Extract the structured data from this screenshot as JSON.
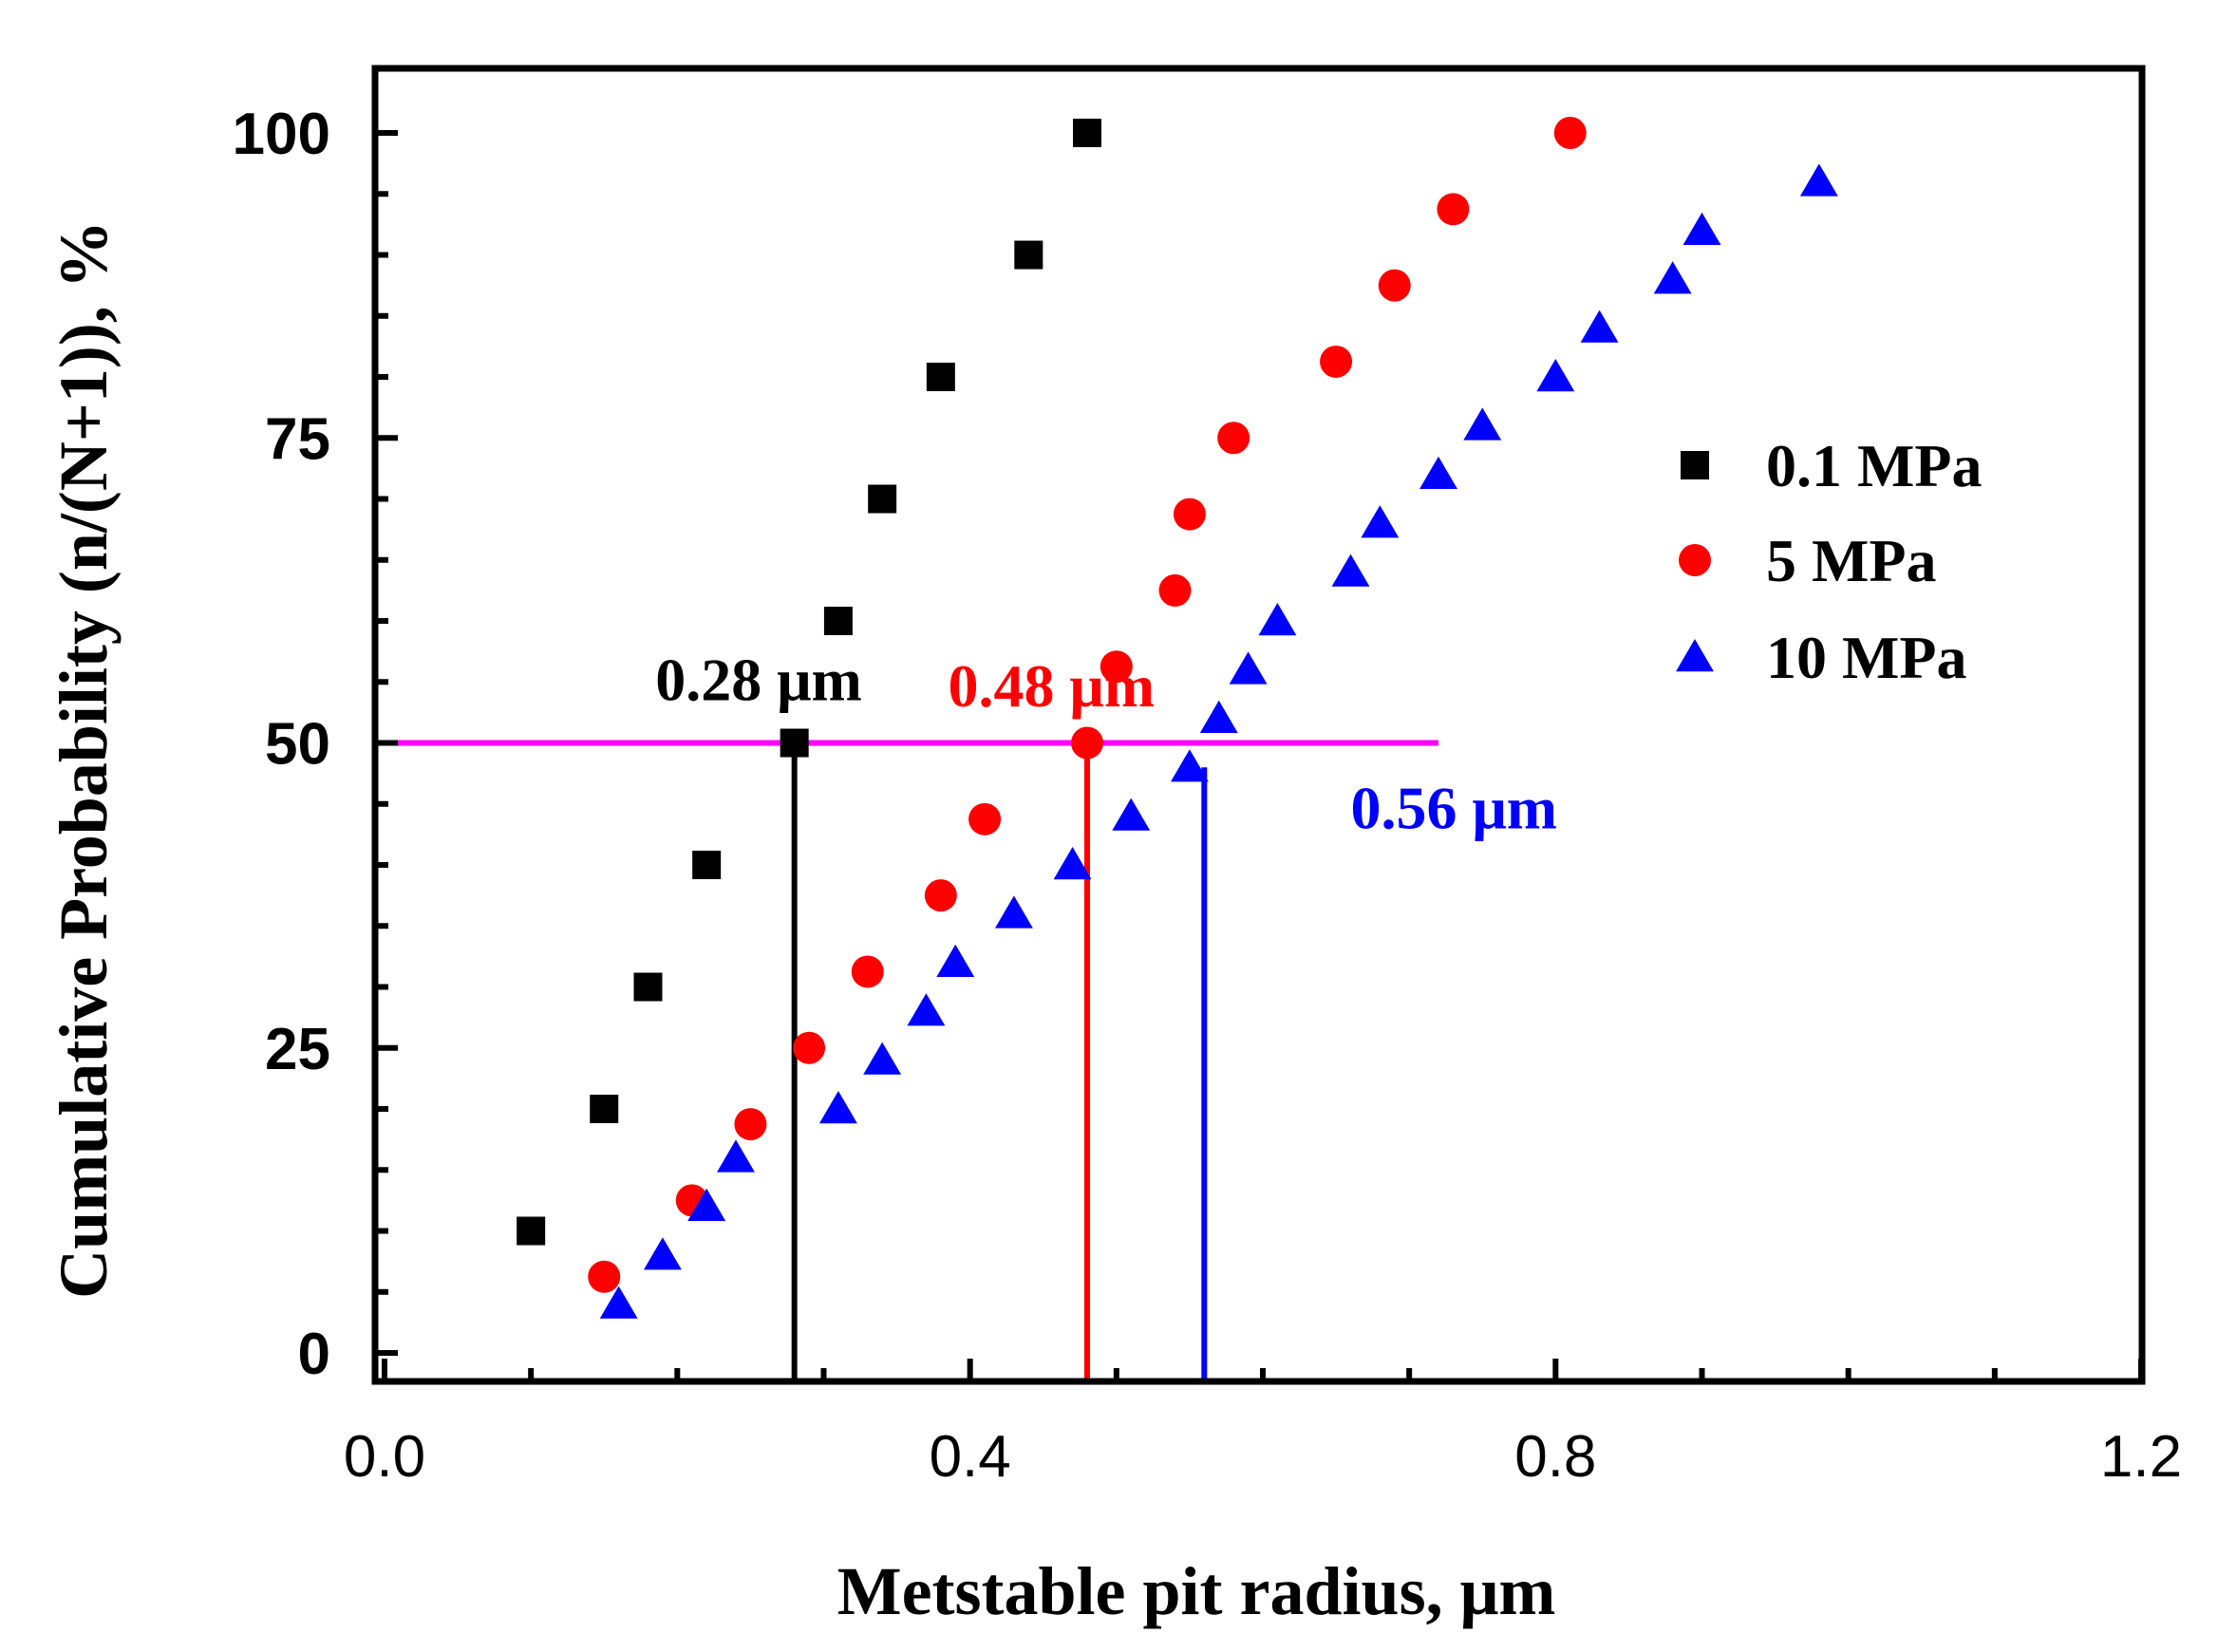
{
  "chart_data": {
    "type": "scatter",
    "xlabel": "Metstable pit radius, μm",
    "ylabel": "Cumulative Probability (n/(N+1)), %",
    "xlim": [
      0.0,
      1.2
    ],
    "ylim": [
      -2,
      105
    ],
    "xticks": [
      0.0,
      0.4,
      0.8,
      1.2
    ],
    "xtick_labels": [
      "0.0",
      "0.4",
      "0.8",
      "1.2"
    ],
    "yticks": [
      0,
      25,
      50,
      75,
      100
    ],
    "ytick_labels": [
      "0",
      "25",
      "50",
      "75",
      "100"
    ],
    "grid": false,
    "legend_position": "right",
    "series": [
      {
        "name": "0.1 MPa",
        "marker": "square",
        "color": "#000000",
        "points": [
          [
            0.1,
            10
          ],
          [
            0.15,
            20
          ],
          [
            0.18,
            30
          ],
          [
            0.22,
            40
          ],
          [
            0.28,
            50
          ],
          [
            0.31,
            60
          ],
          [
            0.34,
            70
          ],
          [
            0.38,
            80
          ],
          [
            0.44,
            90
          ],
          [
            0.48,
            100
          ]
        ]
      },
      {
        "name": "5 MPa",
        "marker": "circle",
        "color": "#ff0000",
        "points": [
          [
            0.15,
            6.25
          ],
          [
            0.21,
            12.5
          ],
          [
            0.25,
            18.75
          ],
          [
            0.29,
            25.0
          ],
          [
            0.33,
            31.25
          ],
          [
            0.38,
            37.5
          ],
          [
            0.41,
            43.75
          ],
          [
            0.48,
            50.0
          ],
          [
            0.5,
            56.25
          ],
          [
            0.54,
            62.5
          ],
          [
            0.55,
            68.75
          ],
          [
            0.58,
            75.0
          ],
          [
            0.65,
            81.25
          ],
          [
            0.69,
            87.5
          ],
          [
            0.73,
            93.75
          ],
          [
            0.81,
            100.0
          ]
        ]
      },
      {
        "name": "10 MPa",
        "marker": "triangle",
        "color": "#0000ff",
        "points": [
          [
            0.16,
            4
          ],
          [
            0.19,
            8
          ],
          [
            0.22,
            12
          ],
          [
            0.24,
            16
          ],
          [
            0.31,
            20
          ],
          [
            0.34,
            24
          ],
          [
            0.37,
            28
          ],
          [
            0.39,
            32
          ],
          [
            0.43,
            36
          ],
          [
            0.47,
            40
          ],
          [
            0.51,
            44
          ],
          [
            0.55,
            48
          ],
          [
            0.57,
            52
          ],
          [
            0.59,
            56
          ],
          [
            0.61,
            60
          ],
          [
            0.66,
            64
          ],
          [
            0.68,
            68
          ],
          [
            0.72,
            72
          ],
          [
            0.75,
            76
          ],
          [
            0.8,
            80
          ],
          [
            0.83,
            84
          ],
          [
            0.88,
            88
          ],
          [
            0.9,
            92
          ],
          [
            0.98,
            96
          ]
        ]
      }
    ],
    "reference_lines": [
      {
        "orientation": "horizontal",
        "y": 50,
        "x_from": 0.0,
        "x_to": 0.72,
        "color": "#ff00ff"
      },
      {
        "orientation": "vertical",
        "x": 0.28,
        "y_from": -2,
        "y_to": 50,
        "color": "#000000"
      },
      {
        "orientation": "vertical",
        "x": 0.48,
        "y_from": -2,
        "y_to": 50,
        "color": "#ff0000"
      },
      {
        "orientation": "vertical",
        "x": 0.56,
        "y_from": -2,
        "y_to": 48,
        "color": "#0000ff"
      }
    ],
    "annotations": [
      {
        "text": "0.28 μm",
        "x": 0.185,
        "y": 53.5,
        "color": "#000000"
      },
      {
        "text": "0.48 μm",
        "x": 0.385,
        "y": 53.0,
        "color": "#ff0000"
      },
      {
        "text": "0.56 μm",
        "x": 0.66,
        "y": 43.0,
        "color": "#0000ff"
      }
    ]
  }
}
